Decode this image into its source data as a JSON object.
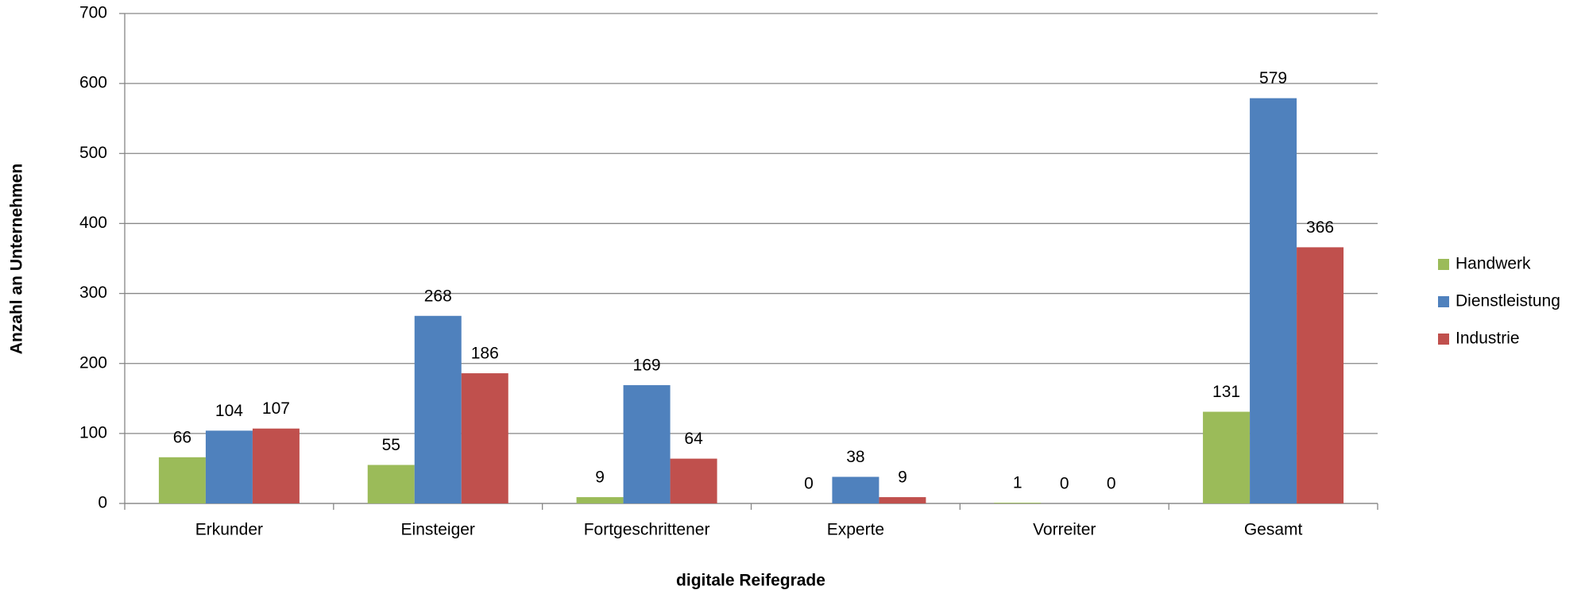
{
  "chart_data": {
    "type": "bar",
    "x_label": "digitale Reifegrade",
    "y_label": "Anzahl an Unternehmen",
    "categories": [
      "Erkunder",
      "Einsteiger",
      "Fortgeschrittener",
      "Experte",
      "Vorreiter",
      "Gesamt"
    ],
    "series": [
      {
        "name": "Handwerk",
        "color": "#9bbb59",
        "values": [
          66,
          55,
          9,
          0,
          1,
          131
        ]
      },
      {
        "name": "Dienstleistung",
        "color": "#4f81bd",
        "values": [
          104,
          268,
          169,
          38,
          0,
          579
        ]
      },
      {
        "name": "Industrie",
        "color": "#c0504d",
        "values": [
          107,
          186,
          64,
          9,
          0,
          366
        ]
      }
    ],
    "ylim": [
      0,
      700
    ],
    "yticks": [
      0,
      100,
      200,
      300,
      400,
      500,
      600,
      700
    ],
    "grid": true,
    "legend": "right"
  }
}
